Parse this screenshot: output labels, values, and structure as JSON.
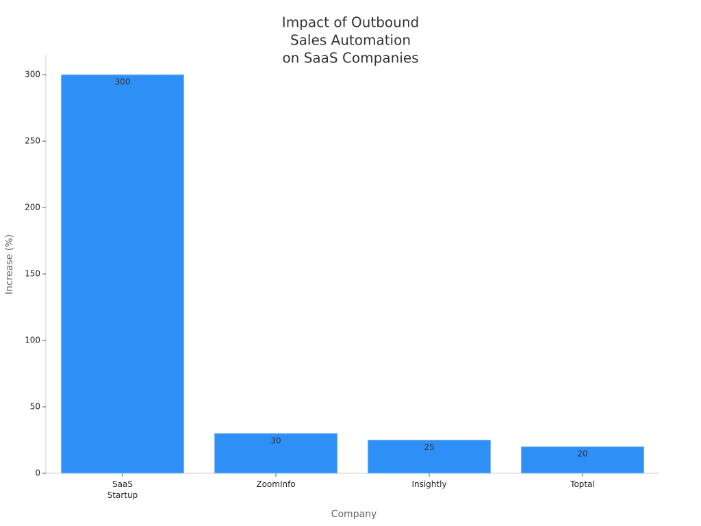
{
  "chart_data": {
    "type": "bar",
    "title": [
      "Impact of Outbound",
      "Sales Automation",
      "on SaaS Companies"
    ],
    "x_label": "Company",
    "y_label": "Increase (%)",
    "categories": [
      "SaaS Startup",
      "ZoomInfo",
      "Insightly",
      "Toptal"
    ],
    "values": [
      300,
      30,
      25,
      20
    ],
    "color": "#2e90f7",
    "ylim": [
      0,
      315
    ],
    "yticks": [
      0,
      50,
      100,
      150,
      200,
      250,
      300
    ]
  }
}
